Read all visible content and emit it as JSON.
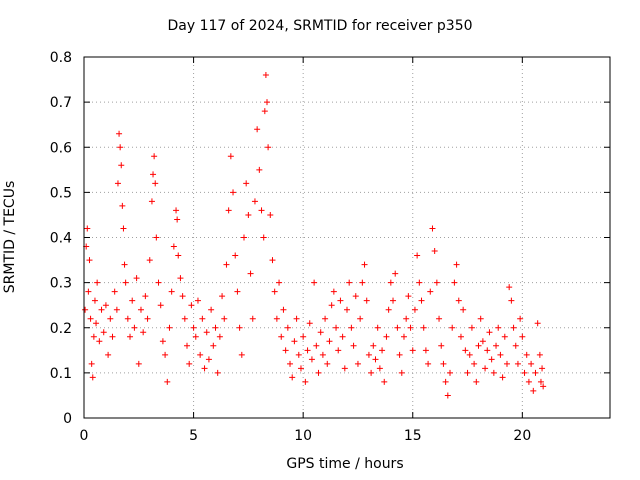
{
  "chart_data": {
    "type": "scatter",
    "title": "Day 117 of 2024, SRMTID for receiver p350",
    "xlabel": "GPS time / hours",
    "ylabel": "SRMTID / TECUs",
    "xlim": [
      0,
      24
    ],
    "ylim": [
      0,
      0.8
    ],
    "xticks": [
      0,
      5,
      10,
      15,
      20
    ],
    "yticks": [
      0,
      0.1,
      0.2,
      0.3,
      0.4,
      0.5,
      0.6,
      0.7,
      0.8
    ],
    "xtick_labels": [
      "0",
      "5",
      "10",
      "15",
      "20"
    ],
    "ytick_labels": [
      "0",
      "0.1",
      "0.2",
      "0.3",
      "0.4",
      "0.5",
      "0.6",
      "0.7",
      "0.8"
    ],
    "grid": true,
    "marker": "+",
    "series": [
      {
        "name": "SRMTID",
        "color": "#ff0000",
        "points": [
          [
            0.05,
            0.24
          ],
          [
            0.1,
            0.38
          ],
          [
            0.15,
            0.42
          ],
          [
            0.2,
            0.28
          ],
          [
            0.25,
            0.35
          ],
          [
            0.3,
            0.22
          ],
          [
            0.35,
            0.12
          ],
          [
            0.4,
            0.09
          ],
          [
            0.45,
            0.18
          ],
          [
            0.5,
            0.26
          ],
          [
            0.55,
            0.21
          ],
          [
            0.6,
            0.3
          ],
          [
            0.7,
            0.17
          ],
          [
            0.8,
            0.24
          ],
          [
            0.9,
            0.19
          ],
          [
            1.0,
            0.25
          ],
          [
            1.1,
            0.14
          ],
          [
            1.2,
            0.22
          ],
          [
            1.3,
            0.18
          ],
          [
            1.4,
            0.28
          ],
          [
            1.5,
            0.24
          ],
          [
            1.55,
            0.52
          ],
          [
            1.6,
            0.63
          ],
          [
            1.65,
            0.6
          ],
          [
            1.7,
            0.56
          ],
          [
            1.75,
            0.47
          ],
          [
            1.8,
            0.42
          ],
          [
            1.85,
            0.34
          ],
          [
            1.9,
            0.3
          ],
          [
            2.0,
            0.22
          ],
          [
            2.1,
            0.18
          ],
          [
            2.2,
            0.26
          ],
          [
            2.3,
            0.2
          ],
          [
            2.4,
            0.31
          ],
          [
            2.5,
            0.12
          ],
          [
            2.6,
            0.24
          ],
          [
            2.7,
            0.19
          ],
          [
            2.8,
            0.27
          ],
          [
            2.9,
            0.22
          ],
          [
            3.0,
            0.35
          ],
          [
            3.1,
            0.48
          ],
          [
            3.15,
            0.54
          ],
          [
            3.2,
            0.58
          ],
          [
            3.25,
            0.52
          ],
          [
            3.3,
            0.4
          ],
          [
            3.4,
            0.3
          ],
          [
            3.5,
            0.25
          ],
          [
            3.6,
            0.17
          ],
          [
            3.7,
            0.14
          ],
          [
            3.8,
            0.08
          ],
          [
            3.9,
            0.2
          ],
          [
            4.0,
            0.28
          ],
          [
            4.1,
            0.38
          ],
          [
            4.2,
            0.46
          ],
          [
            4.25,
            0.44
          ],
          [
            4.3,
            0.36
          ],
          [
            4.4,
            0.31
          ],
          [
            4.5,
            0.27
          ],
          [
            4.6,
            0.22
          ],
          [
            4.7,
            0.16
          ],
          [
            4.8,
            0.12
          ],
          [
            4.9,
            0.25
          ],
          [
            5.0,
            0.2
          ],
          [
            5.1,
            0.18
          ],
          [
            5.2,
            0.26
          ],
          [
            5.3,
            0.14
          ],
          [
            5.4,
            0.22
          ],
          [
            5.5,
            0.11
          ],
          [
            5.6,
            0.19
          ],
          [
            5.7,
            0.13
          ],
          [
            5.8,
            0.24
          ],
          [
            5.9,
            0.16
          ],
          [
            6.0,
            0.2
          ],
          [
            6.1,
            0.1
          ],
          [
            6.2,
            0.18
          ],
          [
            6.3,
            0.27
          ],
          [
            6.4,
            0.22
          ],
          [
            6.5,
            0.34
          ],
          [
            6.6,
            0.46
          ],
          [
            6.7,
            0.58
          ],
          [
            6.8,
            0.5
          ],
          [
            6.9,
            0.36
          ],
          [
            7.0,
            0.28
          ],
          [
            7.1,
            0.2
          ],
          [
            7.2,
            0.14
          ],
          [
            7.3,
            0.4
          ],
          [
            7.4,
            0.52
          ],
          [
            7.5,
            0.45
          ],
          [
            7.6,
            0.32
          ],
          [
            7.7,
            0.22
          ],
          [
            7.8,
            0.48
          ],
          [
            7.9,
            0.64
          ],
          [
            8.0,
            0.55
          ],
          [
            8.1,
            0.46
          ],
          [
            8.2,
            0.4
          ],
          [
            8.25,
            0.68
          ],
          [
            8.3,
            0.76
          ],
          [
            8.35,
            0.7
          ],
          [
            8.4,
            0.6
          ],
          [
            8.5,
            0.45
          ],
          [
            8.6,
            0.35
          ],
          [
            8.7,
            0.28
          ],
          [
            8.8,
            0.22
          ],
          [
            8.9,
            0.3
          ],
          [
            9.0,
            0.18
          ],
          [
            9.1,
            0.24
          ],
          [
            9.2,
            0.15
          ],
          [
            9.3,
            0.2
          ],
          [
            9.4,
            0.12
          ],
          [
            9.5,
            0.09
          ],
          [
            9.6,
            0.17
          ],
          [
            9.7,
            0.22
          ],
          [
            9.8,
            0.14
          ],
          [
            9.9,
            0.11
          ],
          [
            10.0,
            0.18
          ],
          [
            10.1,
            0.08
          ],
          [
            10.2,
            0.15
          ],
          [
            10.3,
            0.21
          ],
          [
            10.4,
            0.13
          ],
          [
            10.5,
            0.3
          ],
          [
            10.6,
            0.16
          ],
          [
            10.7,
            0.1
          ],
          [
            10.8,
            0.19
          ],
          [
            10.9,
            0.14
          ],
          [
            11.0,
            0.22
          ],
          [
            11.1,
            0.12
          ],
          [
            11.2,
            0.17
          ],
          [
            11.3,
            0.25
          ],
          [
            11.4,
            0.28
          ],
          [
            11.5,
            0.2
          ],
          [
            11.6,
            0.15
          ],
          [
            11.7,
            0.26
          ],
          [
            11.8,
            0.18
          ],
          [
            11.9,
            0.11
          ],
          [
            12.0,
            0.24
          ],
          [
            12.1,
            0.3
          ],
          [
            12.2,
            0.2
          ],
          [
            12.3,
            0.16
          ],
          [
            12.4,
            0.27
          ],
          [
            12.5,
            0.12
          ],
          [
            12.6,
            0.22
          ],
          [
            12.7,
            0.3
          ],
          [
            12.8,
            0.34
          ],
          [
            12.9,
            0.26
          ],
          [
            13.0,
            0.14
          ],
          [
            13.1,
            0.1
          ],
          [
            13.2,
            0.16
          ],
          [
            13.3,
            0.13
          ],
          [
            13.4,
            0.2
          ],
          [
            13.5,
            0.11
          ],
          [
            13.6,
            0.15
          ],
          [
            13.7,
            0.08
          ],
          [
            13.8,
            0.18
          ],
          [
            13.9,
            0.24
          ],
          [
            14.0,
            0.3
          ],
          [
            14.1,
            0.26
          ],
          [
            14.2,
            0.32
          ],
          [
            14.3,
            0.2
          ],
          [
            14.4,
            0.14
          ],
          [
            14.5,
            0.1
          ],
          [
            14.6,
            0.18
          ],
          [
            14.7,
            0.22
          ],
          [
            14.8,
            0.27
          ],
          [
            14.9,
            0.2
          ],
          [
            15.0,
            0.15
          ],
          [
            15.1,
            0.24
          ],
          [
            15.2,
            0.36
          ],
          [
            15.3,
            0.3
          ],
          [
            15.4,
            0.26
          ],
          [
            15.5,
            0.2
          ],
          [
            15.6,
            0.15
          ],
          [
            15.7,
            0.12
          ],
          [
            15.8,
            0.28
          ],
          [
            15.9,
            0.42
          ],
          [
            16.0,
            0.37
          ],
          [
            16.1,
            0.3
          ],
          [
            16.2,
            0.22
          ],
          [
            16.3,
            0.16
          ],
          [
            16.4,
            0.12
          ],
          [
            16.5,
            0.08
          ],
          [
            16.6,
            0.05
          ],
          [
            16.7,
            0.1
          ],
          [
            16.8,
            0.2
          ],
          [
            16.9,
            0.3
          ],
          [
            17.0,
            0.34
          ],
          [
            17.1,
            0.26
          ],
          [
            17.2,
            0.18
          ],
          [
            17.3,
            0.24
          ],
          [
            17.4,
            0.15
          ],
          [
            17.5,
            0.1
          ],
          [
            17.6,
            0.14
          ],
          [
            17.7,
            0.2
          ],
          [
            17.8,
            0.12
          ],
          [
            17.9,
            0.08
          ],
          [
            18.0,
            0.16
          ],
          [
            18.1,
            0.22
          ],
          [
            18.2,
            0.17
          ],
          [
            18.3,
            0.11
          ],
          [
            18.4,
            0.15
          ],
          [
            18.5,
            0.19
          ],
          [
            18.6,
            0.13
          ],
          [
            18.7,
            0.1
          ],
          [
            18.8,
            0.16
          ],
          [
            18.9,
            0.2
          ],
          [
            19.0,
            0.14
          ],
          [
            19.1,
            0.09
          ],
          [
            19.2,
            0.18
          ],
          [
            19.3,
            0.12
          ],
          [
            19.4,
            0.29
          ],
          [
            19.5,
            0.26
          ],
          [
            19.6,
            0.2
          ],
          [
            19.7,
            0.16
          ],
          [
            19.8,
            0.12
          ],
          [
            19.9,
            0.22
          ],
          [
            20.0,
            0.18
          ],
          [
            20.1,
            0.1
          ],
          [
            20.2,
            0.14
          ],
          [
            20.3,
            0.08
          ],
          [
            20.4,
            0.12
          ],
          [
            20.5,
            0.06
          ],
          [
            20.6,
            0.1
          ],
          [
            20.7,
            0.21
          ],
          [
            20.8,
            0.14
          ],
          [
            20.85,
            0.08
          ],
          [
            20.9,
            0.11
          ],
          [
            20.95,
            0.07
          ]
        ]
      }
    ]
  }
}
